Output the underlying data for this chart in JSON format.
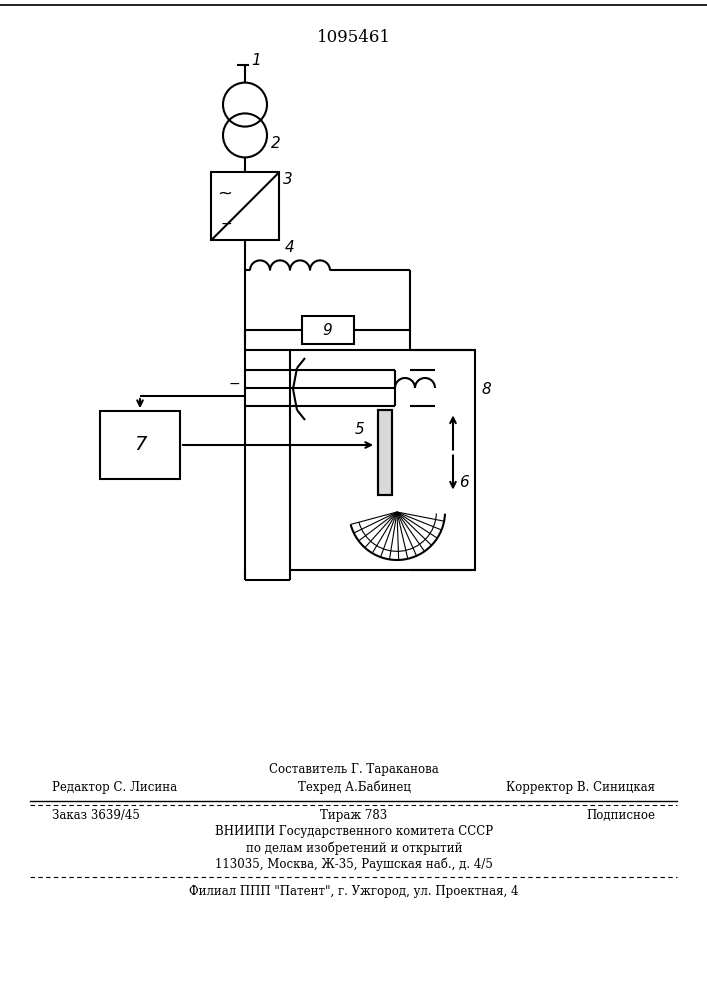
{
  "title": "1095461",
  "bg_color": "#ffffff",
  "line_color": "#000000",
  "footer_line1_left": "Редактор С. Лисина",
  "footer_compose": "Составитель Г. Тараканова",
  "footer_techred": "Техред А.Бабинец",
  "footer_line1_right": "Корректор В. Синицкая",
  "footer_line2_left": "Заказ 3639/45",
  "footer_line2_center": "Тираж 783",
  "footer_line2_right": "Подписное",
  "footer_line3": "ВНИИПИ Государственного комитета СССР",
  "footer_line4": "по делам изобретений и открытий",
  "footer_line5": "113035, Москва, Ж-35, Раушская наб., д. 4/5",
  "footer_line6": "Филиал ППП \"Патент\", г. Ужгород, ул. Проектная, 4"
}
